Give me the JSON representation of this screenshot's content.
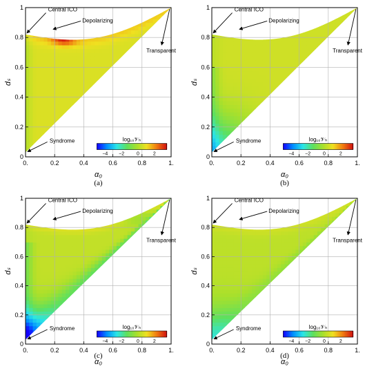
{
  "chart_data": [
    {
      "type": "heatmap",
      "panel": "(a)",
      "xlabel": "α₀",
      "ylabel": "dₛ",
      "xlim": [
        0,
        1
      ],
      "ylim": [
        0,
        1
      ],
      "x_ticks": [
        "0.",
        "0.2",
        "0.4",
        "0.6",
        "0.8",
        "1."
      ],
      "y_ticks": [
        "0",
        "0.2",
        "0.4",
        "0.6",
        "0.8",
        "1"
      ],
      "grid": true,
      "colorbar": {
        "label": "log₁₀𝒱ₕ",
        "range": [
          -5,
          3.5
        ],
        "ticks": [
          "−4",
          "−2",
          "0",
          "2"
        ],
        "placement": "bottom-right"
      },
      "annotations": [
        {
          "label": "Central ICO",
          "x": 0.0,
          "y": 0.82
        },
        {
          "label": "Depolarizing",
          "x": 0.18,
          "y": 0.85
        },
        {
          "label": "Transparent",
          "x": 1.0,
          "y": 1.0
        },
        {
          "label": "Syndrome",
          "x": 0.0,
          "y": 0.03
        }
      ],
      "field": {
        "base": 0.6,
        "hotspot": {
          "x": 0.25,
          "y": 0.82,
          "value": 2.6
        },
        "low_region": "left edge near α₀=0",
        "low_value": -0.4
      }
    },
    {
      "type": "heatmap",
      "panel": "(b)",
      "xlabel": "α₀",
      "ylabel": "dₛ",
      "xlim": [
        0,
        1
      ],
      "ylim": [
        0,
        1
      ],
      "x_ticks": [
        "0.",
        "0.2",
        "0.4",
        "0.6",
        "0.8",
        "1."
      ],
      "y_ticks": [
        "0",
        "0.2",
        "0.4",
        "0.6",
        "0.8",
        "1"
      ],
      "grid": true,
      "colorbar": {
        "label": "log₁₀𝒱ₕ",
        "range": [
          -5,
          3.5
        ],
        "ticks": [
          "−4",
          "−2",
          "0",
          "2"
        ],
        "placement": "bottom-right"
      },
      "annotations": [
        {
          "label": "Central ICO",
          "x": 0.0,
          "y": 0.82
        },
        {
          "label": "Depolarizing",
          "x": 0.18,
          "y": 0.85
        },
        {
          "label": "Transparent",
          "x": 1.0,
          "y": 1.0
        },
        {
          "label": "Syndrome",
          "x": 0.0,
          "y": 0.03
        }
      ],
      "field": {
        "base": 0.3,
        "low_region": "lower-left corner",
        "low_value": -2.6
      }
    },
    {
      "type": "heatmap",
      "panel": "(c)",
      "xlabel": "α₀",
      "ylabel": "dₛ",
      "xlim": [
        0,
        1
      ],
      "ylim": [
        0,
        1
      ],
      "x_ticks": [
        "0.",
        "0.2",
        "0.4",
        "0.6",
        "0.8",
        "1."
      ],
      "y_ticks": [
        "0",
        "0.2",
        "0.4",
        "0.6",
        "0.8",
        "1"
      ],
      "grid": true,
      "colorbar": {
        "label": "log₁₀𝒱ₕ",
        "range": [
          -5,
          3.5
        ],
        "ticks": [
          "−4",
          "−2",
          "0",
          "2"
        ],
        "placement": "bottom-right"
      },
      "annotations": [
        {
          "label": "Central ICO",
          "x": 0.0,
          "y": 0.82
        },
        {
          "label": "Depolarizing",
          "x": 0.18,
          "y": 0.85
        },
        {
          "label": "Transparent",
          "x": 1.0,
          "y": 1.0
        },
        {
          "label": "Syndrome",
          "x": 0.0,
          "y": 0.03
        }
      ],
      "field": {
        "base": 0.2,
        "low_region": "bottom-left corner and lower diagonal band",
        "low_value": -3.0
      }
    },
    {
      "type": "heatmap",
      "panel": "(d)",
      "xlabel": "α₀",
      "ylabel": "dₛ",
      "xlim": [
        0,
        1
      ],
      "ylim": [
        0,
        1
      ],
      "x_ticks": [
        "0.",
        "0.2",
        "0.4",
        "0.6",
        "0.8",
        "1."
      ],
      "y_ticks": [
        "0",
        "0.2",
        "0.4",
        "0.6",
        "0.8",
        "1"
      ],
      "grid": true,
      "colorbar": {
        "label": "log₁₀𝒱ₕ",
        "range": [
          -5,
          3.5
        ],
        "ticks": [
          "−4",
          "−2",
          "0",
          "2"
        ],
        "placement": "bottom-right"
      },
      "annotations": [
        {
          "label": "Central ICO",
          "x": 0.0,
          "y": 0.82
        },
        {
          "label": "Depolarizing",
          "x": 0.18,
          "y": 0.85
        },
        {
          "label": "Transparent",
          "x": 1.0,
          "y": 1.0
        },
        {
          "label": "Syndrome",
          "x": 0.0,
          "y": 0.03
        }
      ],
      "field": {
        "base": 0.1,
        "low_region": "lower-left corner",
        "low_value": -1.6
      }
    }
  ],
  "colormap": [
    "#1400ff",
    "#0090ff",
    "#2ce6e6",
    "#5ee05e",
    "#a8e02c",
    "#f0e020",
    "#f07a10",
    "#d01010"
  ]
}
